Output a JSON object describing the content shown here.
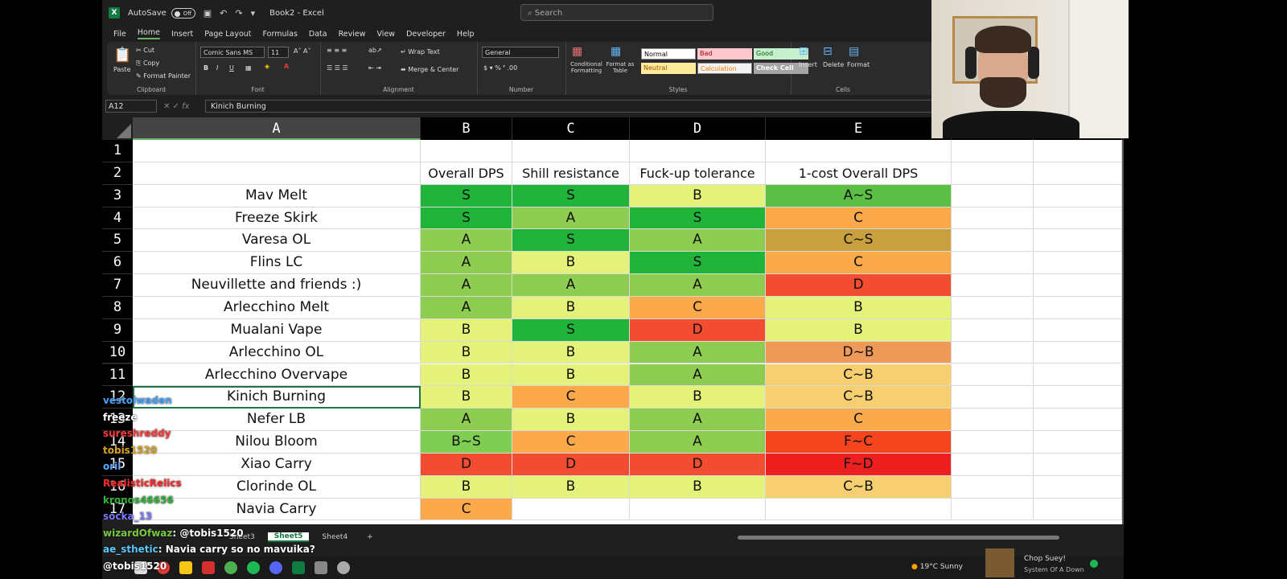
{
  "titlebar": {
    "autosave_label": "AutoSave",
    "toggle_label": "Off",
    "title": "Book2 - Excel",
    "search_placeholder": "Search"
  },
  "menu": [
    "File",
    "Home",
    "Insert",
    "Page Layout",
    "Formulas",
    "Data",
    "Review",
    "View",
    "Developer",
    "Help"
  ],
  "ribbon": {
    "paste": "Paste",
    "cut": "Cut",
    "copy": "Copy",
    "format_painter": "Format Painter",
    "clipboard_label": "Clipboard",
    "font_name": "Comic Sans MS",
    "font_size": "11",
    "font_label": "Font",
    "wrap_text": "Wrap Text",
    "merge_center": "Merge & Center",
    "alignment_label": "Alignment",
    "number_format": "General",
    "number_label": "Number",
    "conditional_formatting": "Conditional Formatting",
    "format_as_table": "Format as Table",
    "styles": {
      "normal": "Normal",
      "bad": "Bad",
      "good": "Good",
      "neutral": "Neutral",
      "calculation": "Calculation",
      "check_cell": "Check Cell"
    },
    "styles_label": "Styles",
    "insert": "Insert",
    "delete": "Delete",
    "format": "Format",
    "cells_label": "Cells"
  },
  "formula_bar": {
    "name_box": "A12",
    "fx": "fx",
    "content": "Kinich Burning"
  },
  "columns": [
    "A",
    "B",
    "C",
    "D",
    "E"
  ],
  "headers": [
    "",
    "Overall DPS",
    "Shill resistance",
    "Fuck-up tolerance",
    "1-cost Overall DPS"
  ],
  "rows": [
    {
      "num": "3",
      "team": "Mav Melt",
      "dps": "S",
      "shill": "S",
      "fuckup": "B",
      "cost1": "A~S"
    },
    {
      "num": "4",
      "team": "Freeze Skirk",
      "dps": "S",
      "shill": "A",
      "fuckup": "S",
      "cost1": "C"
    },
    {
      "num": "5",
      "team": "Varesa OL",
      "dps": "A",
      "shill": "S",
      "fuckup": "A",
      "cost1": "C~S"
    },
    {
      "num": "6",
      "team": "Flins LC",
      "dps": "A",
      "shill": "B",
      "fuckup": "S",
      "cost1": "C"
    },
    {
      "num": "7",
      "team": "Neuvillette and friends :)",
      "dps": "A",
      "shill": "A",
      "fuckup": "A",
      "cost1": "D"
    },
    {
      "num": "8",
      "team": "Arlecchino Melt",
      "dps": "A",
      "shill": "B",
      "fuckup": "C",
      "cost1": "B"
    },
    {
      "num": "9",
      "team": "Mualani Vape",
      "dps": "B",
      "shill": "S",
      "fuckup": "D",
      "cost1": "B"
    },
    {
      "num": "10",
      "team": "Arlecchino OL",
      "dps": "B",
      "shill": "B",
      "fuckup": "A",
      "cost1": "D~B"
    },
    {
      "num": "11",
      "team": "Arlecchino Overvape",
      "dps": "B",
      "shill": "B",
      "fuckup": "A",
      "cost1": "C~B"
    },
    {
      "num": "12",
      "team": "Kinich Burning",
      "dps": "B",
      "shill": "C",
      "fuckup": "B",
      "cost1": "C~B"
    },
    {
      "num": "13",
      "team": "Nefer LB",
      "dps": "A",
      "shill": "B",
      "fuckup": "A",
      "cost1": "C"
    },
    {
      "num": "14",
      "team": "Nilou Bloom",
      "dps": "B~S",
      "shill": "C",
      "fuckup": "A",
      "cost1": "F~C"
    },
    {
      "num": "15",
      "team": "Xiao Carry",
      "dps": "D",
      "shill": "D",
      "fuckup": "D",
      "cost1": "F~D"
    },
    {
      "num": "16",
      "team": "Clorinde OL",
      "dps": "B",
      "shill": "B",
      "fuckup": "B",
      "cost1": "C~B"
    },
    {
      "num": "17",
      "team": "Navia Carry",
      "dps": "C",
      "shill": "",
      "fuckup": "",
      "cost1": ""
    }
  ],
  "grade_colors": {
    "S": "#22b33a",
    "A": "#8fcc52",
    "B": "#e4f27a",
    "C": "#fba94a",
    "D": "#f24d30",
    "A~S": "#5cbf45",
    "C~S": "#c9a040",
    "D~B": "#f09a5a",
    "C~B": "#f5cf70",
    "B~S": "#7fcd52",
    "F~C": "#f5451f",
    "F~D": "#ee1f1f"
  },
  "sheet_tabs": [
    "Sheet3",
    "Sheet5",
    "Sheet4"
  ],
  "active_tab": "Sheet5",
  "chat": [
    {
      "user": "vestolwaden",
      "msg": "",
      "color": "#4aa3ff"
    },
    {
      "user": "freeze",
      "msg": "",
      "color": "#ffffff"
    },
    {
      "user": "sureshreddy",
      "msg": "",
      "color": "#ff3b3b"
    },
    {
      "user": "tobis1520",
      "msg": "",
      "color": "#d9a520"
    },
    {
      "user": "oril",
      "msg": "",
      "color": "#5aa9ff"
    },
    {
      "user": "RealisticRelics",
      "msg": "",
      "color": "#ff2b2b"
    },
    {
      "user": "kronos46656",
      "msg": "",
      "color": "#33b23a"
    },
    {
      "user": "socka_13",
      "msg": "",
      "color": "#7a7aff"
    },
    {
      "user": "wizardOfwaz",
      "msg": ": @tobis1520",
      "color": "#7ac943"
    },
    {
      "user": "ae_sthetic",
      "msg": ": Navia carry so no mavuika?",
      "color": "#5ac8fa"
    },
    {
      "user": "",
      "msg": "@tobis1520",
      "color": "#ffffff"
    }
  ],
  "taskbar": {
    "weather": "19°C  Sunny"
  },
  "media": {
    "title": "Chop Suey!",
    "artist": "System Of A Down"
  }
}
